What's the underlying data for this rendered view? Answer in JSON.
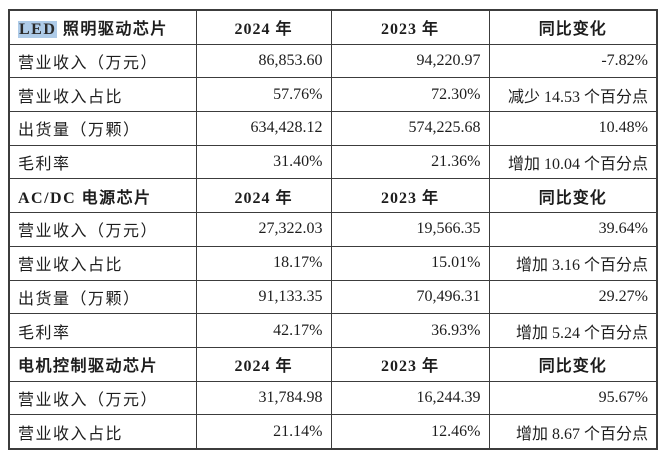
{
  "colors": {
    "highlight": "#aecbe8",
    "border": "#3c3c3c",
    "text": "#1d1d1d"
  },
  "table": {
    "year_columns": [
      "2024 年",
      "2023 年",
      "同比变化"
    ],
    "sections": [
      {
        "title_highlighted": "LED",
        "title": "照明驱动芯片",
        "rows": [
          {
            "label": "营业收入（万元）",
            "y2024": "86,853.60",
            "y2023": "94,220.97",
            "change": "-7.82%"
          },
          {
            "label": "营业收入占比",
            "y2024": "57.76%",
            "y2023": "72.30%",
            "change": "减少 14.53 个百分点"
          },
          {
            "label": "出货量（万颗）",
            "y2024": "634,428.12",
            "y2023": "574,225.68",
            "change": "10.48%"
          },
          {
            "label": "毛利率",
            "y2024": "31.40%",
            "y2023": "21.36%",
            "change": "增加 10.04 个百分点"
          }
        ]
      },
      {
        "title_highlighted": "",
        "title": "AC/DC 电源芯片",
        "rows": [
          {
            "label": "营业收入（万元）",
            "y2024": "27,322.03",
            "y2023": "19,566.35",
            "change": "39.64%"
          },
          {
            "label": "营业收入占比",
            "y2024": "18.17%",
            "y2023": "15.01%",
            "change": "增加 3.16 个百分点"
          },
          {
            "label": "出货量（万颗）",
            "y2024": "91,133.35",
            "y2023": "70,496.31",
            "change": "29.27%"
          },
          {
            "label": "毛利率",
            "y2024": "42.17%",
            "y2023": "36.93%",
            "change": "增加 5.24 个百分点"
          }
        ]
      },
      {
        "title_highlighted": "",
        "title": "电机控制驱动芯片",
        "rows": [
          {
            "label": "营业收入（万元）",
            "y2024": "31,784.98",
            "y2023": "16,244.39",
            "change": "95.67%"
          },
          {
            "label": "营业收入占比",
            "y2024": "21.14%",
            "y2023": "12.46%",
            "change": "增加 8.67 个百分点"
          }
        ]
      }
    ]
  }
}
